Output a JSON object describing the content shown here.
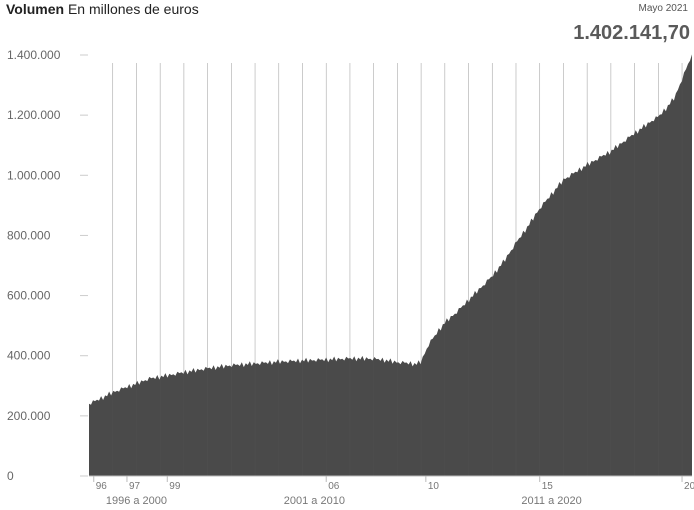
{
  "header": {
    "title_bold": "Volumen",
    "title_rest": "En millones de euros",
    "date": "Mayo 2021",
    "current_value": "1.402.141,70"
  },
  "chart_data": {
    "type": "area",
    "title": "Volumen En millones de euros",
    "ylabel": "",
    "xlabel": "",
    "ylim": [
      0,
      1400000
    ],
    "xlim": [
      1996,
      2021.42
    ],
    "y_ticks": [
      0,
      200000,
      400000,
      600000,
      800000,
      1000000,
      1200000,
      1400000
    ],
    "y_tick_labels": [
      "0",
      "200.000",
      "400.000",
      "600.000",
      "800.000",
      "1.000.000",
      "1.200.000",
      "1.400.000"
    ],
    "x_tick_labels": [
      {
        "x": 1996.2,
        "label": "96"
      },
      {
        "x": 1997.6,
        "label": "97"
      },
      {
        "x": 1999.3,
        "label": "99"
      },
      {
        "x": 2006.0,
        "label": "06"
      },
      {
        "x": 2010.2,
        "label": "10"
      },
      {
        "x": 2015.0,
        "label": "15"
      },
      {
        "x": 2021.0,
        "label": "20"
      }
    ],
    "periods": [
      {
        "label": "1996 a 2000",
        "from": 1996,
        "to": 2000
      },
      {
        "label": "2001 a 2010",
        "from": 2001,
        "to": 2010
      },
      {
        "label": "2011 a 2020",
        "from": 2011,
        "to": 2020
      }
    ],
    "color": "#4a4a4a",
    "series": [
      {
        "x": [
          1996.0,
          1996.5,
          1997.0,
          1997.5,
          1998.0,
          1998.5,
          1999.0,
          2000.0,
          2001.0,
          2002.0,
          2003.0,
          2004.0,
          2005.0,
          2006.0,
          2007.0,
          2008.0,
          2008.5,
          2009.0,
          2009.4,
          2009.8,
          2010.0,
          2010.3,
          2010.7,
          2011.0,
          2011.5,
          2012.0,
          2012.5,
          2013.0,
          2013.5,
          2014.0,
          2014.5,
          2015.0,
          2016.0,
          2017.0,
          2018.0,
          2019.0,
          2019.8,
          2020.0,
          2020.3,
          2020.7,
          2021.0,
          2021.42
        ],
        "y": [
          240000,
          258000,
          278000,
          293000,
          307000,
          323000,
          330000,
          345000,
          358000,
          368000,
          374000,
          380000,
          384000,
          387000,
          391000,
          390000,
          385000,
          378000,
          376000,
          372000,
          380000,
          435000,
          480000,
          510000,
          545000,
          585000,
          625000,
          665000,
          715000,
          775000,
          830000,
          890000,
          985000,
          1035000,
          1080000,
          1140000,
          1185000,
          1195000,
          1220000,
          1260000,
          1320000,
          1402141.7
        ]
      }
    ]
  }
}
